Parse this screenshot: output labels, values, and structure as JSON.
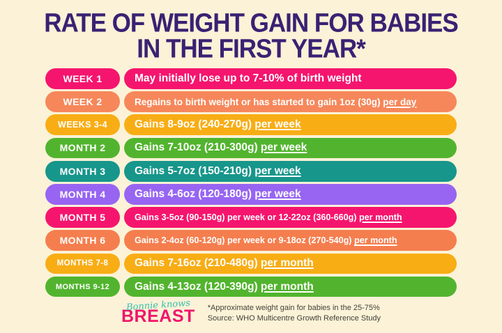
{
  "title": {
    "line1": "RATE OF WEIGHT GAIN FOR BABIES",
    "line2": "IN THE FIRST YEAR*"
  },
  "rows": [
    {
      "label": "WEEK 1",
      "text": "May initially lose up to 7-10% of birth weight",
      "underline": "",
      "color": "#F5156E"
    },
    {
      "label": "WEEK 2",
      "text": "Regains to birth weight or has started to gain 1oz (30g) ",
      "underline": "per day",
      "color": "#F6875A"
    },
    {
      "label": "WEEKS 3-4",
      "text": "Gains 8-9oz (240-270g) ",
      "underline": "per week",
      "color": "#F8AD15"
    },
    {
      "label": "MONTH 2",
      "text": "Gains 7-10oz (210-300g) ",
      "underline": "per week",
      "color": "#52B42E"
    },
    {
      "label": "MONTH 3",
      "text": "Gains 5-7oz (150-210g) ",
      "underline": "per week",
      "color": "#17968B"
    },
    {
      "label": "MONTH 4",
      "text": "Gains 4-6oz (120-180g) ",
      "underline": "per week",
      "color": "#9765F2"
    },
    {
      "label": "MONTH 5",
      "text": "Gains 3-5oz (90-150g) per week or 12-22oz (360-660g) ",
      "underline": "per month",
      "color": "#F5156E"
    },
    {
      "label": "MONTH 6",
      "text": "Gains 2-4oz (60-120g) per week or 9-18oz (270-540g) ",
      "underline": "per month",
      "color": "#F57E4E"
    },
    {
      "label": "MONTHS 7-8",
      "text": "Gains 7-16oz (210-480g) ",
      "underline": "per month",
      "color": "#F8AD15"
    },
    {
      "label": "MONTHS 9-12",
      "text": "Gains 4-13oz (120-390g) ",
      "underline": "per month",
      "color": "#52B42E"
    }
  ],
  "footer": {
    "logo_script": "Bonnie knows",
    "logo_main": "BREAST",
    "note_line1": "*Approximate weight gain for babies in the 25-75%",
    "note_line2": "Source: WHO Multicentre Growth Reference Study"
  },
  "colors": {
    "background": "#FBF2D7",
    "title": "#3A2173",
    "logo_script": "#35BDAD",
    "logo_main": "#F0156C",
    "note": "#42423A"
  }
}
